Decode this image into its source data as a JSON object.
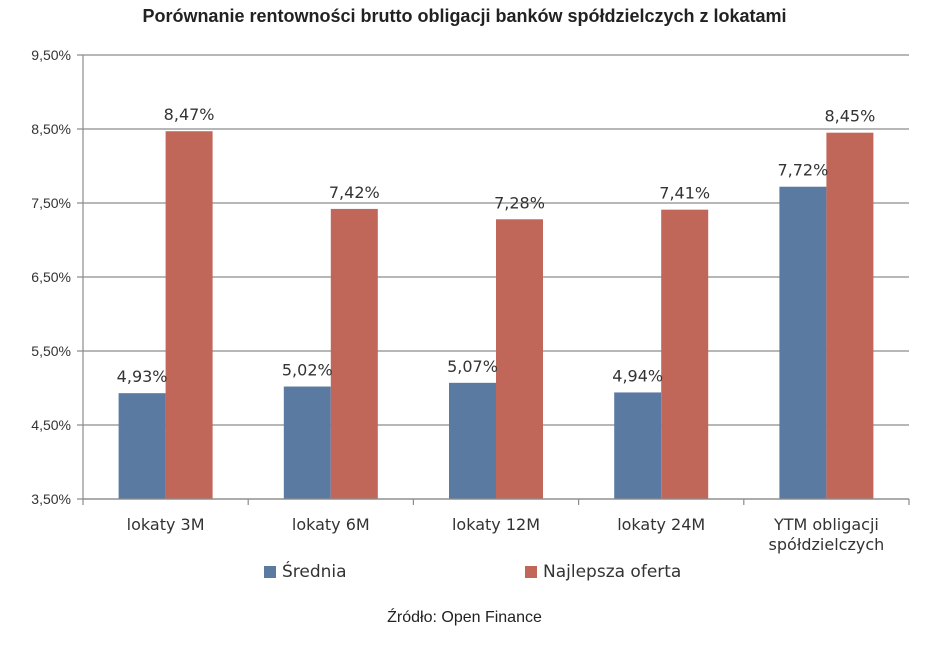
{
  "chart_data": {
    "type": "bar",
    "title": "Porównanie rentowności brutto obligacji banków spółdzielczych z lokatami",
    "categories": [
      [
        "lokaty 3M"
      ],
      [
        "lokaty 6M"
      ],
      [
        "lokaty 12M"
      ],
      [
        "lokaty 24M"
      ],
      [
        "YTM obligacji",
        "spółdzielczych"
      ]
    ],
    "series": [
      {
        "name": "Średnia",
        "color": "#5b7aa1",
        "values": [
          4.93,
          5.02,
          5.07,
          4.94,
          7.72
        ],
        "labels": [
          "4,93%",
          "5,02%",
          "5,07%",
          "4,94%",
          "7,72%"
        ]
      },
      {
        "name": "Najlepsza oferta",
        "color": "#c0675a",
        "values": [
          8.47,
          7.42,
          7.28,
          7.41,
          8.45
        ],
        "labels": [
          "8,47%",
          "7,42%",
          "7,28%",
          "7,41%",
          "8,45%"
        ]
      }
    ],
    "ylim": [
      3.5,
      9.5
    ],
    "yticks": [
      3.5,
      4.5,
      5.5,
      6.5,
      7.5,
      8.5,
      9.5
    ],
    "ytick_labels": [
      "3,50%",
      "4,50%",
      "5,50%",
      "6,50%",
      "7,50%",
      "8,50%",
      "9,50%"
    ],
    "grid": true,
    "legend_position": "bottom"
  },
  "source_note": "Źródło: Open Finance"
}
